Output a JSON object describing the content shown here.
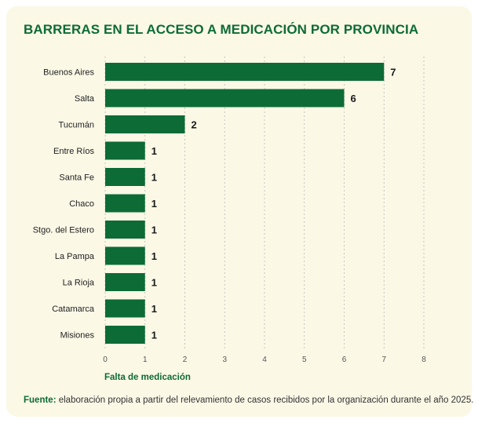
{
  "colors": {
    "bar": "#0d6b36",
    "title": "#0d6b36",
    "grid": "#b8b8b8",
    "background": "#fbf8e6"
  },
  "footer": {
    "label": "Fuente:",
    "text": " elaboración propia a partir del relevamiento de casos recibidos por la organización durante el año 2025."
  },
  "chart_data": {
    "type": "bar",
    "orientation": "horizontal",
    "title": "BARRERAS EN EL ACCESO A MEDICACIÓN POR PROVINCIA",
    "xlabel": "Falta de medicación",
    "ylabel": "",
    "categories": [
      "Buenos Aires",
      "Salta",
      "Tucumán",
      "Entre Ríos",
      "Santa Fe",
      "Chaco",
      "Stgo. del Estero",
      "La Pampa",
      "La Rioja",
      "Catamarca",
      "Misiones"
    ],
    "values": [
      7,
      6,
      2,
      1,
      1,
      1,
      1,
      1,
      1,
      1,
      1
    ],
    "xlim": [
      0,
      8
    ],
    "xticks": [
      0,
      1,
      2,
      3,
      4,
      5,
      6,
      7,
      8
    ],
    "grid": "vertical dashed",
    "data_labels": true
  }
}
